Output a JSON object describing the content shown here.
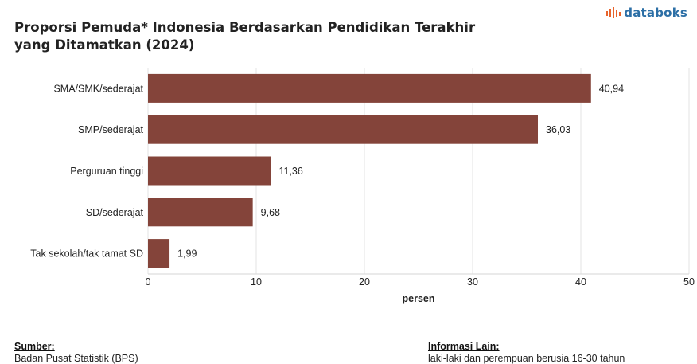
{
  "brand": {
    "name": "databoks",
    "icon": "databoks-logo-icon",
    "color": "#2c6fa6",
    "icon_color": "#e8632b"
  },
  "chart_data": {
    "type": "bar",
    "orientation": "horizontal",
    "title": "Proporsi Pemuda* Indonesia Berdasarkan Pendidikan Terakhir yang Ditamatkan (2024)",
    "title_lines": [
      "Proporsi Pemuda* Indonesia Berdasarkan Pendidikan Terakhir",
      "yang Ditamatkan (2024)"
    ],
    "categories": [
      "SMA/SMK/sederajat",
      "SMP/sederajat",
      "Perguruan tinggi",
      "SD/sederajat",
      "Tak sekolah/tak tamat SD"
    ],
    "values": [
      40.94,
      36.03,
      11.36,
      9.68,
      1.99
    ],
    "value_labels": [
      "40,94",
      "36,03",
      "11,36",
      "9,68",
      "1,99"
    ],
    "xlabel": "persen",
    "ylabel": "",
    "xlim": [
      0,
      50
    ],
    "xticks": [
      0,
      10,
      20,
      30,
      40,
      50
    ],
    "xtick_labels": [
      "0",
      "10",
      "20",
      "30",
      "40",
      "50"
    ],
    "bar_color": "#84443a",
    "grid": true
  },
  "footer": {
    "source_label": "Sumber:",
    "source_value": "Badan Pusat Statistik (BPS)",
    "info_label": "Informasi Lain:",
    "info_value": "laki-laki dan perempuan berusia 16-30 tahun"
  }
}
